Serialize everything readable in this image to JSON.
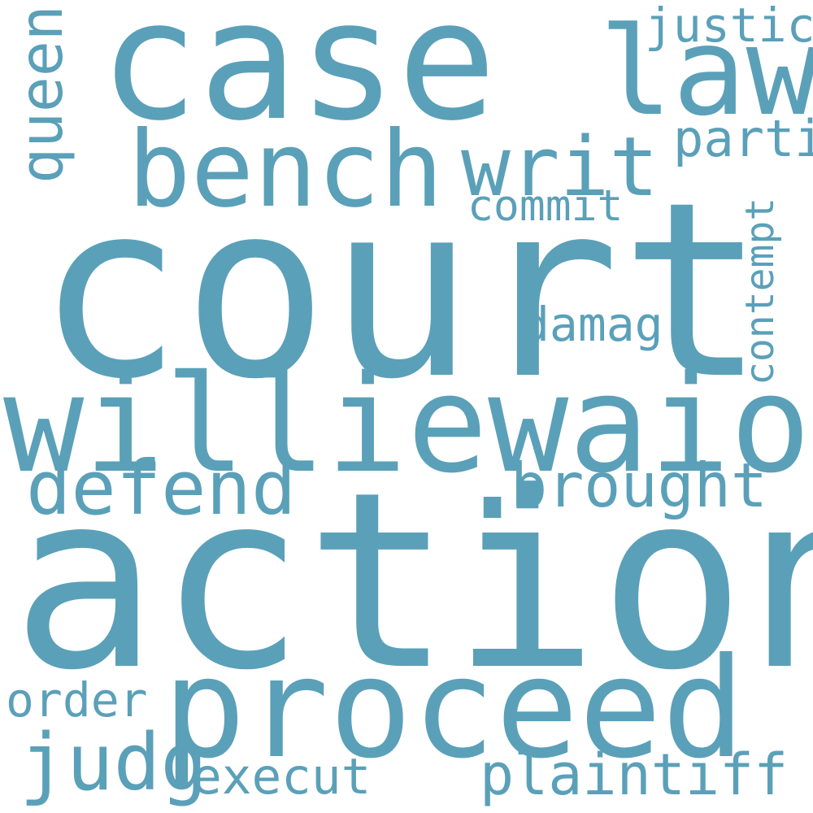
{
  "cloud": {
    "color": "#5ba0b9",
    "words": {
      "case": "case",
      "law": "law",
      "justic": "justic",
      "queen": "queen",
      "bench": "bench",
      "writ": "writ",
      "parti": "parti",
      "commit": "commit",
      "contempt": "contempt",
      "court": "court",
      "damag": "damag",
      "williewaiola": "williewaiola",
      "defend": "defend",
      "brought": "brought",
      "dot": ".",
      "action": "action",
      "proceed": "proceed",
      "order": "order",
      "judg": "judg",
      "execut": "execut",
      "plaintiff": "plaintiff"
    }
  }
}
